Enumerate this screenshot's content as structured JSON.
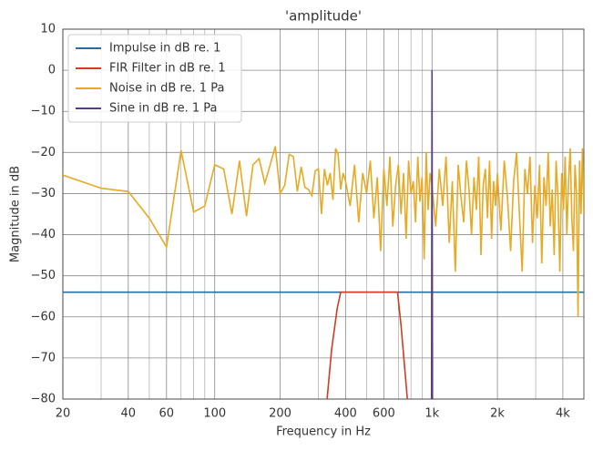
{
  "chart_data": {
    "type": "line",
    "title": "'amplitude'",
    "xlabel": "Frequency in Hz",
    "ylabel": "Magnitude in dB",
    "xscale": "log",
    "xlim": [
      20,
      5000
    ],
    "ylim": [
      -80,
      10
    ],
    "xticks": [
      20,
      40,
      60,
      100,
      200,
      400,
      600,
      {
        "value": 1000,
        "label": "1k"
      },
      {
        "value": 2000,
        "label": "2k"
      },
      {
        "value": 4000,
        "label": "4k"
      }
    ],
    "xminorticks": [
      30,
      50,
      70,
      80,
      90,
      300,
      500,
      700,
      800,
      900,
      3000
    ],
    "yticks": [
      10,
      0,
      {
        "value": -10,
        "label": "−10"
      },
      {
        "value": -20,
        "label": "−20"
      },
      {
        "value": -30,
        "label": "−30"
      },
      {
        "value": -40,
        "label": "−40"
      },
      {
        "value": -50,
        "label": "−50"
      },
      {
        "value": -60,
        "label": "−60"
      },
      {
        "value": -70,
        "label": "−70"
      },
      {
        "value": -80,
        "label": "−80"
      }
    ],
    "grid": true,
    "legend": "upper left",
    "series": [
      {
        "name": "Impulse in dB re. 1",
        "color": "#1f6fa3",
        "x": [
          20,
          5000
        ],
        "values": [
          -54,
          -54
        ]
      },
      {
        "name": "FIR Filter in dB re. 1",
        "color": "#d23c22",
        "x": [
          329,
          345,
          366,
          380,
          694,
          720,
          770
        ],
        "values": [
          -80,
          -68,
          -58,
          -54,
          -54,
          -62,
          -80
        ]
      },
      {
        "name": "Noise in dB re. 1 Pa",
        "color": "#e8a923",
        "x": [
          20,
          30,
          40,
          50,
          60,
          70,
          80,
          90,
          100,
          110,
          120,
          130,
          140,
          150,
          160,
          170,
          180,
          190,
          200,
          210,
          220,
          230,
          240,
          250,
          260,
          270,
          280,
          290,
          300,
          310,
          320,
          330,
          340,
          350,
          360,
          370,
          380,
          390,
          400,
          420,
          440,
          460,
          480,
          500,
          520,
          540,
          560,
          580,
          600,
          620,
          640,
          660,
          680,
          700,
          720,
          740,
          760,
          780,
          800,
          820,
          840,
          860,
          880,
          900,
          920,
          940,
          960,
          980,
          1000,
          1040,
          1080,
          1120,
          1160,
          1200,
          1240,
          1280,
          1320,
          1360,
          1400,
          1440,
          1480,
          1520,
          1560,
          1600,
          1640,
          1680,
          1720,
          1760,
          1800,
          1840,
          1880,
          1920,
          1960,
          2000,
          2075,
          2150,
          2225,
          2300,
          2375,
          2450,
          2525,
          2600,
          2675,
          2750,
          2825,
          2900,
          2975,
          3050,
          3125,
          3200,
          3275,
          3350,
          3425,
          3500,
          3575,
          3650,
          3725,
          3800,
          3875,
          3950,
          4025,
          4100,
          4175,
          4250,
          4325,
          4400,
          4475,
          4550,
          4625,
          4700,
          4775,
          4850,
          4925,
          5000
        ],
        "values": [
          -25.5,
          -28.7,
          -29.5,
          -36,
          -43,
          -19.5,
          -34.5,
          -33,
          -23,
          -24,
          -35,
          -22,
          -35.5,
          -23,
          -21.5,
          -27.5,
          -23,
          -18.5,
          -30,
          -28,
          -20.5,
          -21,
          -29.5,
          -23.5,
          -28.5,
          -29,
          -30.5,
          -24.5,
          -24,
          -35,
          -24,
          -28,
          -25,
          -31.5,
          -19,
          -20.5,
          -29,
          -25,
          -27,
          -33,
          -23,
          -37,
          -25,
          -30,
          -22,
          -36,
          -26,
          -44,
          -24,
          -33,
          -21,
          -38,
          -28,
          -23,
          -35,
          -25,
          -41,
          -22,
          -30,
          -27,
          -37,
          -21,
          -32,
          -26,
          -46,
          -20,
          -34,
          -25,
          -28,
          -38,
          -24,
          -33,
          -21,
          -42,
          -27,
          -49,
          -23,
          -31,
          -37,
          -22,
          -29,
          -40,
          -26,
          -34,
          -21,
          -45,
          -28,
          -24,
          -36,
          -22,
          -41,
          -27,
          -33,
          -25,
          -39,
          -22,
          -31,
          -44,
          -27,
          -20,
          -35,
          -49,
          -24,
          -30,
          -21,
          -42,
          -28,
          -36,
          -23,
          -47,
          -26,
          -33,
          -20,
          -38,
          -29,
          -45,
          -22,
          -31,
          -49,
          -25,
          -34,
          -21,
          -40,
          -27,
          -19,
          -36,
          -44,
          -23,
          -30,
          -60,
          -22,
          -35,
          -19,
          -35
        ]
      },
      {
        "name": "Sine in dB re. 1 Pa",
        "color": "#5a3a8e",
        "x": [
          995,
          1000,
          1005
        ],
        "values": [
          -80,
          0,
          -80
        ]
      }
    ]
  }
}
